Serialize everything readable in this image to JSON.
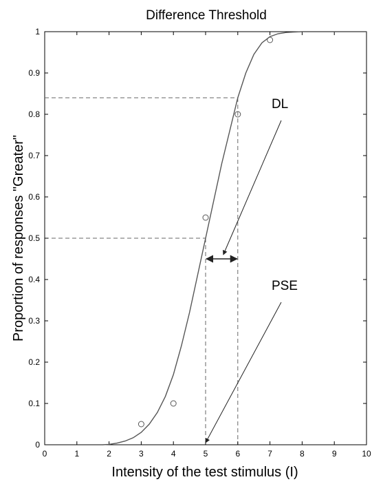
{
  "chart_data": {
    "type": "line",
    "title": "Difference Threshold",
    "xlabel": "Intensity of the test stimulus (I)",
    "ylabel": "Proportion of responses \"Greater\"",
    "xlim": [
      0,
      10
    ],
    "ylim": [
      0,
      1
    ],
    "x_ticks": [
      "0",
      "1",
      "2",
      "3",
      "4",
      "5",
      "6",
      "7",
      "8",
      "9",
      "10"
    ],
    "y_ticks": [
      "0",
      "0.1",
      "0.2",
      "0.3",
      "0.4",
      "0.5",
      "0.6",
      "0.7",
      "0.8",
      "0.9",
      "1"
    ],
    "grid": false,
    "legend": "none",
    "series": [
      {
        "kind": "fitted-curve",
        "style": "solid",
        "color": "#555555",
        "x": [
          1.8,
          2.0,
          2.25,
          2.5,
          2.75,
          3.0,
          3.25,
          3.5,
          3.75,
          4.0,
          4.25,
          4.5,
          4.75,
          5.0,
          5.25,
          5.5,
          5.75,
          6.0,
          6.25,
          6.5,
          6.75,
          7.0,
          7.25,
          7.5,
          7.75,
          8.0,
          8.5,
          9.0,
          9.5,
          10.0
        ],
        "y": [
          0.0,
          0.001,
          0.004,
          0.009,
          0.017,
          0.03,
          0.05,
          0.078,
          0.117,
          0.17,
          0.24,
          0.32,
          0.41,
          0.5,
          0.59,
          0.68,
          0.76,
          0.84,
          0.9,
          0.945,
          0.973,
          0.988,
          0.995,
          0.998,
          0.999,
          1.0,
          1.0,
          1.0,
          1.0,
          1.0
        ]
      },
      {
        "kind": "observed-points",
        "marker": "circle",
        "color": "#555555",
        "x": [
          3,
          4,
          5,
          6,
          7
        ],
        "y": [
          0.05,
          0.1,
          0.55,
          0.8,
          0.98
        ]
      }
    ],
    "reference_lines": [
      {
        "style": "dashed",
        "from": [
          0,
          0.84
        ],
        "to": [
          6,
          0.84
        ]
      },
      {
        "style": "dashed",
        "from": [
          0,
          0.5
        ],
        "to": [
          5,
          0.5
        ]
      },
      {
        "style": "dashed",
        "from": [
          6,
          0.84
        ],
        "to": [
          6,
          0
        ]
      },
      {
        "style": "dashed",
        "from": [
          5,
          0.5
        ],
        "to": [
          5,
          0
        ]
      }
    ],
    "interval_arrow": {
      "x_from": 5,
      "x_to": 6,
      "y": 0.45
    },
    "annotations": [
      {
        "text": "DL",
        "text_x": 7.05,
        "text_y": 0.815,
        "arrow_from": [
          7.35,
          0.785
        ],
        "arrow_to": [
          5.55,
          0.46
        ]
      },
      {
        "text": "PSE",
        "text_x": 7.05,
        "text_y": 0.375,
        "arrow_from": [
          7.35,
          0.345
        ],
        "arrow_to": [
          5.0,
          0.005
        ]
      }
    ]
  }
}
